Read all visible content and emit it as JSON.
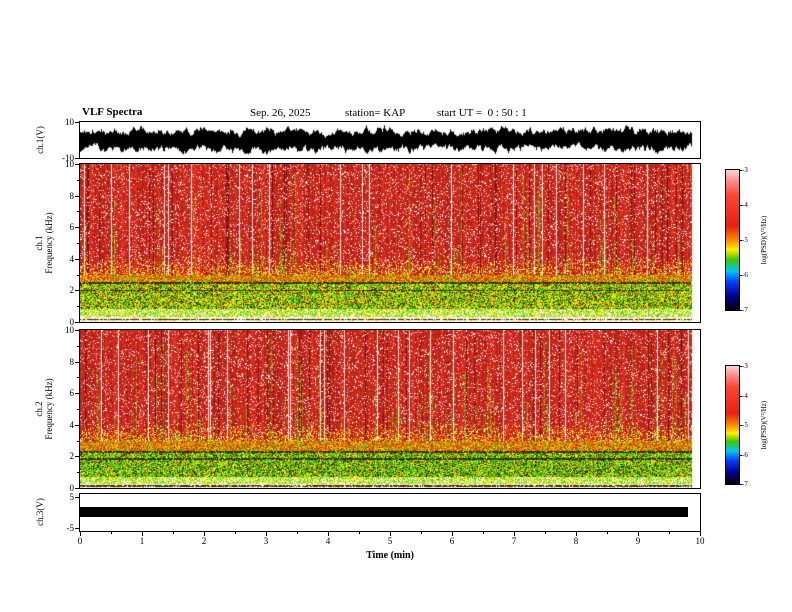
{
  "header": {
    "title": "VLF Spectra",
    "date": "Sep. 26, 2025",
    "station": "station= KAP",
    "start_ut": "start UT =  0 : 50 : 1"
  },
  "panels": {
    "ch1_wave": {
      "ylabel": "ch.1(V)",
      "ymax_label": "10",
      "ymin_label": "-10"
    },
    "ch1_spec": {
      "ylabel_line1": "ch.1",
      "ylabel_line2": "Frequency (kHz)",
      "yticks": [
        "10",
        "8",
        "6",
        "4",
        "2",
        "0"
      ]
    },
    "ch2_spec": {
      "ylabel_line1": "ch.2",
      "ylabel_line2": "Frequency (kHz)",
      "yticks": [
        "10",
        "8",
        "6",
        "4",
        "2",
        "0"
      ]
    },
    "ch3": {
      "ylabel": "ch.3(V)",
      "ymax_label": "5",
      "ymin_label": "-5"
    }
  },
  "xaxis": {
    "label": "Time (min)",
    "ticks": [
      "0",
      "1",
      "2",
      "3",
      "4",
      "5",
      "6",
      "7",
      "8",
      "9",
      "10"
    ]
  },
  "colorbar": {
    "label": "log(PSD)(V²/Hz)",
    "ticks": [
      "-3",
      "-4",
      "-5",
      "-6",
      "-7"
    ],
    "gradient": [
      {
        "p": 0,
        "c": "#ffd2d2"
      },
      {
        "p": 7,
        "c": "#ff9494"
      },
      {
        "p": 18,
        "c": "#ff4530"
      },
      {
        "p": 40,
        "c": "#e82010"
      },
      {
        "p": 50,
        "c": "#ff8800"
      },
      {
        "p": 57,
        "c": "#ffee00"
      },
      {
        "p": 64,
        "c": "#3ec800"
      },
      {
        "p": 72,
        "c": "#00c8f0"
      },
      {
        "p": 80,
        "c": "#0040ff"
      },
      {
        "p": 90,
        "c": "#000090"
      },
      {
        "p": 100,
        "c": "#000000"
      }
    ]
  },
  "render": {
    "data_width": 612,
    "seeds": {
      "wave": 1337,
      "spec1": 20250926,
      "spec2": 50926
    },
    "spec1": {
      "streak_prob": 0.12,
      "red_low": 3.0,
      "band_high": 2.55,
      "band_low": 0.85,
      "low_strip": 0.35,
      "band_weights": [
        0.4,
        0.3,
        0.1,
        0.1,
        0.1
      ],
      "lines": [
        2.5,
        2.02,
        0.18
      ]
    },
    "spec2": {
      "streak_prob": 0.17,
      "red_low": 3.0,
      "band_high": 2.4,
      "band_low": 0.7,
      "low_strip": 0.3,
      "band_weights": [
        0.28,
        0.4,
        0.12,
        0.08,
        0.12
      ],
      "lines": [
        2.32,
        1.86,
        0.16
      ]
    }
  },
  "chart_data": {
    "type": "heatmap",
    "title": "VLF Spectra",
    "date": "Sep. 26, 2025",
    "station": "KAP",
    "start_ut": "0 : 50 : 1",
    "xlabel": "Time (min)",
    "x_range": [
      0,
      10
    ],
    "x_ticks": [
      0,
      1,
      2,
      3,
      4,
      5,
      6,
      7,
      8,
      9,
      10
    ],
    "record_length_min": 9.8,
    "panels": [
      {
        "name": "ch.1(V)",
        "kind": "waveform",
        "y_range": [
          -10,
          10
        ],
        "summary": "Dense black broadband voltage trace with envelope varying roughly between ±4 and ±10 V for the whole record"
      },
      {
        "name": "ch.1 Frequency (kHz)",
        "kind": "spectrogram",
        "y_range": [
          0,
          10
        ],
        "color_range_log_psd": [
          -7,
          -3
        ],
        "bands": [
          {
            "freq_khz": [
              3.0,
              10.0
            ],
            "log_psd": "~ -3.5 (red)",
            "notes": "broadband red noise with vertical green sferic streaks and occasional white dropout columns"
          },
          {
            "freq_khz": [
              2.55,
              3.0
            ],
            "log_psd": "~ -4 (orange/yellow mix)"
          },
          {
            "freq_khz": [
              0.85,
              2.55
            ],
            "log_psd": "~ -4.5 to -5.5 (yellow/green)",
            "notes": "thin dark horizontal lines near 2.5 and 2.0 kHz"
          },
          {
            "freq_khz": [
              0.35,
              0.85
            ],
            "log_psd": "~ -5 (green/yellow)"
          },
          {
            "freq_khz": [
              0.0,
              0.35
            ],
            "log_psd": "~ -6.5 (pale white with sparse orange speckle)"
          }
        ]
      },
      {
        "name": "ch.2 Frequency (kHz)",
        "kind": "spectrogram",
        "y_range": [
          0,
          10
        ],
        "color_range_log_psd": [
          -7,
          -3
        ],
        "bands": [
          {
            "freq_khz": [
              3.0,
              10.0
            ],
            "log_psd": "~ -3.5 (red)",
            "notes": "broadband red noise with more frequent green vertical streaks than ch.1"
          },
          {
            "freq_khz": [
              2.4,
              3.0
            ],
            "log_psd": "~ -4 (orange/yellow mix)"
          },
          {
            "freq_khz": [
              0.7,
              2.4
            ],
            "log_psd": "~ -4.5 to -5.5 (green dominant)",
            "notes": "thin dark horizontal lines near 2.3 and 1.9 kHz"
          },
          {
            "freq_khz": [
              0.3,
              0.7
            ],
            "log_psd": "~ -5 (green/yellow)"
          },
          {
            "freq_khz": [
              0.0,
              0.3
            ],
            "log_psd": "~ -6.5 (pale white)"
          }
        ]
      },
      {
        "name": "ch.3(V)",
        "kind": "waveform",
        "y_range": [
          -5,
          5
        ],
        "summary": "Flat thick black trace near 0 V from 0 to about 9.8 min"
      }
    ],
    "colorbar": {
      "label": "log(PSD)(V²/Hz)",
      "ticks": [
        -3,
        -4,
        -5,
        -6,
        -7
      ]
    }
  }
}
